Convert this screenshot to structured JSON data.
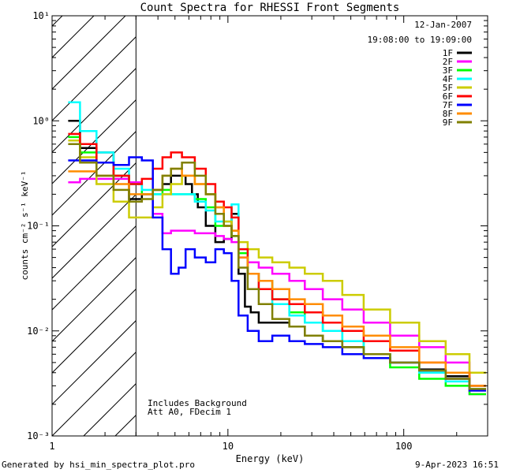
{
  "chart_data": {
    "type": "line",
    "title": "Count Spectra for RHESSI Front Segments",
    "xlabel": "Energy (keV)",
    "ylabel": "counts cm⁻² s⁻¹ keV⁻¹",
    "x_scale": "log",
    "y_scale": "log",
    "xlim": [
      1,
      300
    ],
    "ylim": [
      0.001,
      10
    ],
    "x_ticks": [
      {
        "v": 1,
        "label": "1"
      },
      {
        "v": 10,
        "label": "10"
      },
      {
        "v": 100,
        "label": "100"
      }
    ],
    "y_ticks": [
      {
        "v": 0.001,
        "label": "10⁻³"
      },
      {
        "v": 0.01,
        "label": "10⁻²"
      },
      {
        "v": 0.1,
        "label": "10⁻¹"
      },
      {
        "v": 1,
        "label": "10⁰"
      },
      {
        "v": 10,
        "label": "10¹"
      }
    ],
    "date": "12-Jan-2007",
    "time_range": "19:08:00 to 19:09:00",
    "attenuator_energy_kev": 3,
    "annotations": [
      "Includes Background",
      "Att A0, FDecim 1"
    ],
    "series": [
      {
        "name": "1F",
        "color": "#000000",
        "points": [
          [
            1.3,
            1.0
          ],
          [
            1.6,
            0.55
          ],
          [
            2.0,
            0.5
          ],
          [
            2.5,
            0.3
          ],
          [
            3.0,
            0.18
          ],
          [
            3.5,
            0.2
          ],
          [
            4.0,
            0.22
          ],
          [
            4.5,
            0.25
          ],
          [
            5.0,
            0.3
          ],
          [
            5.5,
            0.3
          ],
          [
            6.0,
            0.25
          ],
          [
            6.5,
            0.2
          ],
          [
            7.0,
            0.15
          ],
          [
            8.0,
            0.1
          ],
          [
            9.0,
            0.07
          ],
          [
            10.0,
            0.075
          ],
          [
            11.0,
            0.13
          ],
          [
            12.0,
            0.035
          ],
          [
            13.0,
            0.017
          ],
          [
            14.0,
            0.015
          ],
          [
            16.0,
            0.012
          ],
          [
            20.0,
            0.012
          ],
          [
            25.0,
            0.011
          ],
          [
            30.0,
            0.009
          ],
          [
            40.0,
            0.008
          ],
          [
            50.0,
            0.007
          ],
          [
            70.0,
            0.006
          ],
          [
            100.0,
            0.005
          ],
          [
            150.0,
            0.0043
          ],
          [
            200.0,
            0.0037
          ],
          [
            280.0,
            0.003
          ]
        ]
      },
      {
        "name": "2F",
        "color": "#ff00ff",
        "points": [
          [
            1.3,
            0.26
          ],
          [
            1.6,
            0.28
          ],
          [
            2.0,
            0.28
          ],
          [
            2.5,
            0.28
          ],
          [
            3.0,
            0.26
          ],
          [
            3.5,
            0.2
          ],
          [
            4.0,
            0.13
          ],
          [
            4.5,
            0.085
          ],
          [
            5.0,
            0.09
          ],
          [
            6.0,
            0.09
          ],
          [
            7.0,
            0.085
          ],
          [
            8.0,
            0.085
          ],
          [
            9.0,
            0.08
          ],
          [
            10.0,
            0.075
          ],
          [
            11.0,
            0.07
          ],
          [
            12.0,
            0.05
          ],
          [
            14.0,
            0.045
          ],
          [
            16.0,
            0.04
          ],
          [
            20.0,
            0.035
          ],
          [
            25.0,
            0.03
          ],
          [
            30.0,
            0.025
          ],
          [
            40.0,
            0.02
          ],
          [
            50.0,
            0.016
          ],
          [
            70.0,
            0.012
          ],
          [
            100.0,
            0.009
          ],
          [
            150.0,
            0.007
          ],
          [
            200.0,
            0.005
          ],
          [
            280.0,
            0.0025
          ]
        ]
      },
      {
        "name": "3F",
        "color": "#00ff00",
        "points": [
          [
            1.3,
            0.7
          ],
          [
            1.6,
            0.5
          ],
          [
            2.0,
            0.4
          ],
          [
            2.5,
            0.3
          ],
          [
            3.0,
            0.25
          ],
          [
            3.5,
            0.2
          ],
          [
            4.0,
            0.2
          ],
          [
            4.5,
            0.22
          ],
          [
            5.0,
            0.2
          ],
          [
            6.0,
            0.2
          ],
          [
            7.0,
            0.18
          ],
          [
            8.0,
            0.15
          ],
          [
            9.0,
            0.1
          ],
          [
            10.0,
            0.1
          ],
          [
            11.0,
            0.08
          ],
          [
            12.0,
            0.055
          ],
          [
            14.0,
            0.035
          ],
          [
            16.0,
            0.03
          ],
          [
            20.0,
            0.02
          ],
          [
            25.0,
            0.015
          ],
          [
            30.0,
            0.012
          ],
          [
            40.0,
            0.01
          ],
          [
            50.0,
            0.008
          ],
          [
            70.0,
            0.006
          ],
          [
            100.0,
            0.0045
          ],
          [
            150.0,
            0.0035
          ],
          [
            200.0,
            0.003
          ],
          [
            280.0,
            0.0025
          ]
        ]
      },
      {
        "name": "4F",
        "color": "#00ffff",
        "points": [
          [
            1.3,
            1.5
          ],
          [
            1.6,
            0.8
          ],
          [
            2.0,
            0.5
          ],
          [
            2.5,
            0.35
          ],
          [
            3.0,
            0.25
          ],
          [
            3.5,
            0.22
          ],
          [
            4.0,
            0.2
          ],
          [
            4.5,
            0.2
          ],
          [
            5.0,
            0.2
          ],
          [
            6.0,
            0.2
          ],
          [
            7.0,
            0.17
          ],
          [
            8.0,
            0.14
          ],
          [
            9.0,
            0.11
          ],
          [
            10.0,
            0.11
          ],
          [
            11.0,
            0.16
          ],
          [
            12.0,
            0.06
          ],
          [
            14.0,
            0.035
          ],
          [
            16.0,
            0.025
          ],
          [
            20.0,
            0.018
          ],
          [
            25.0,
            0.014
          ],
          [
            30.0,
            0.012
          ],
          [
            40.0,
            0.01
          ],
          [
            50.0,
            0.008
          ],
          [
            70.0,
            0.006
          ],
          [
            100.0,
            0.005
          ],
          [
            150.0,
            0.004
          ],
          [
            200.0,
            0.0033
          ],
          [
            280.0,
            0.0028
          ]
        ]
      },
      {
        "name": "5F",
        "color": "#cccc00",
        "points": [
          [
            1.3,
            0.65
          ],
          [
            1.6,
            0.45
          ],
          [
            2.0,
            0.25
          ],
          [
            2.5,
            0.17
          ],
          [
            3.0,
            0.12
          ],
          [
            3.5,
            0.12
          ],
          [
            4.0,
            0.15
          ],
          [
            4.5,
            0.2
          ],
          [
            5.0,
            0.25
          ],
          [
            6.0,
            0.3
          ],
          [
            7.0,
            0.25
          ],
          [
            8.0,
            0.2
          ],
          [
            9.0,
            0.15
          ],
          [
            10.0,
            0.11
          ],
          [
            11.0,
            0.09
          ],
          [
            12.0,
            0.07
          ],
          [
            14.0,
            0.06
          ],
          [
            16.0,
            0.05
          ],
          [
            20.0,
            0.045
          ],
          [
            25.0,
            0.04
          ],
          [
            30.0,
            0.035
          ],
          [
            40.0,
            0.03
          ],
          [
            50.0,
            0.022
          ],
          [
            70.0,
            0.016
          ],
          [
            100.0,
            0.012
          ],
          [
            150.0,
            0.008
          ],
          [
            200.0,
            0.006
          ],
          [
            280.0,
            0.004
          ]
        ]
      },
      {
        "name": "6F",
        "color": "#ff0000",
        "points": [
          [
            1.3,
            0.75
          ],
          [
            1.6,
            0.6
          ],
          [
            2.0,
            0.4
          ],
          [
            2.5,
            0.3
          ],
          [
            3.0,
            0.25
          ],
          [
            3.5,
            0.28
          ],
          [
            4.0,
            0.35
          ],
          [
            4.5,
            0.45
          ],
          [
            5.0,
            0.5
          ],
          [
            6.0,
            0.45
          ],
          [
            7.0,
            0.35
          ],
          [
            8.0,
            0.25
          ],
          [
            9.0,
            0.17
          ],
          [
            10.0,
            0.15
          ],
          [
            11.0,
            0.12
          ],
          [
            12.0,
            0.06
          ],
          [
            14.0,
            0.035
          ],
          [
            16.0,
            0.025
          ],
          [
            20.0,
            0.02
          ],
          [
            25.0,
            0.018
          ],
          [
            30.0,
            0.015
          ],
          [
            40.0,
            0.012
          ],
          [
            50.0,
            0.01
          ],
          [
            70.0,
            0.008
          ],
          [
            100.0,
            0.0065
          ],
          [
            150.0,
            0.005
          ],
          [
            200.0,
            0.004
          ],
          [
            280.0,
            0.003
          ]
        ]
      },
      {
        "name": "7F",
        "color": "#0000ff",
        "points": [
          [
            1.3,
            0.42
          ],
          [
            1.6,
            0.42
          ],
          [
            2.0,
            0.4
          ],
          [
            2.5,
            0.38
          ],
          [
            3.0,
            0.45
          ],
          [
            3.5,
            0.42
          ],
          [
            4.0,
            0.12
          ],
          [
            4.5,
            0.06
          ],
          [
            5.0,
            0.035
          ],
          [
            5.5,
            0.04
          ],
          [
            6.0,
            0.06
          ],
          [
            7.0,
            0.05
          ],
          [
            8.0,
            0.045
          ],
          [
            9.0,
            0.06
          ],
          [
            10.0,
            0.055
          ],
          [
            11.0,
            0.03
          ],
          [
            12.0,
            0.014
          ],
          [
            14.0,
            0.01
          ],
          [
            16.0,
            0.008
          ],
          [
            20.0,
            0.009
          ],
          [
            25.0,
            0.008
          ],
          [
            30.0,
            0.0075
          ],
          [
            40.0,
            0.007
          ],
          [
            50.0,
            0.006
          ],
          [
            70.0,
            0.0055
          ],
          [
            100.0,
            0.005
          ],
          [
            150.0,
            0.0042
          ],
          [
            200.0,
            0.0035
          ],
          [
            280.0,
            0.0027
          ]
        ]
      },
      {
        "name": "8F",
        "color": "#ff8c00",
        "points": [
          [
            1.3,
            0.33
          ],
          [
            1.6,
            0.33
          ],
          [
            2.0,
            0.3
          ],
          [
            2.5,
            0.25
          ],
          [
            3.0,
            0.2
          ],
          [
            3.5,
            0.2
          ],
          [
            4.0,
            0.22
          ],
          [
            4.5,
            0.3
          ],
          [
            5.0,
            0.35
          ],
          [
            6.0,
            0.3
          ],
          [
            7.0,
            0.25
          ],
          [
            8.0,
            0.2
          ],
          [
            9.0,
            0.15
          ],
          [
            10.0,
            0.1
          ],
          [
            11.0,
            0.09
          ],
          [
            12.0,
            0.05
          ],
          [
            14.0,
            0.035
          ],
          [
            16.0,
            0.03
          ],
          [
            20.0,
            0.025
          ],
          [
            25.0,
            0.02
          ],
          [
            30.0,
            0.018
          ],
          [
            40.0,
            0.014
          ],
          [
            50.0,
            0.011
          ],
          [
            70.0,
            0.009
          ],
          [
            100.0,
            0.007
          ],
          [
            150.0,
            0.005
          ],
          [
            200.0,
            0.004
          ],
          [
            280.0,
            0.003
          ]
        ]
      },
      {
        "name": "9F",
        "color": "#808000",
        "points": [
          [
            1.3,
            0.6
          ],
          [
            1.6,
            0.4
          ],
          [
            2.0,
            0.3
          ],
          [
            2.5,
            0.22
          ],
          [
            3.0,
            0.17
          ],
          [
            3.5,
            0.18
          ],
          [
            4.0,
            0.22
          ],
          [
            4.5,
            0.3
          ],
          [
            5.0,
            0.35
          ],
          [
            6.0,
            0.4
          ],
          [
            7.0,
            0.3
          ],
          [
            8.0,
            0.2
          ],
          [
            9.0,
            0.13
          ],
          [
            10.0,
            0.1
          ],
          [
            11.0,
            0.08
          ],
          [
            12.0,
            0.04
          ],
          [
            14.0,
            0.025
          ],
          [
            16.0,
            0.018
          ],
          [
            20.0,
            0.013
          ],
          [
            25.0,
            0.011
          ],
          [
            30.0,
            0.009
          ],
          [
            40.0,
            0.008
          ],
          [
            50.0,
            0.007
          ],
          [
            70.0,
            0.006
          ],
          [
            100.0,
            0.005
          ],
          [
            150.0,
            0.0042
          ],
          [
            200.0,
            0.0035
          ],
          [
            280.0,
            0.0028
          ]
        ]
      }
    ]
  },
  "footer": {
    "generated_by": "Generated by hsi_min_spectra_plot.pro",
    "timestamp": "9-Apr-2023 16:51"
  }
}
